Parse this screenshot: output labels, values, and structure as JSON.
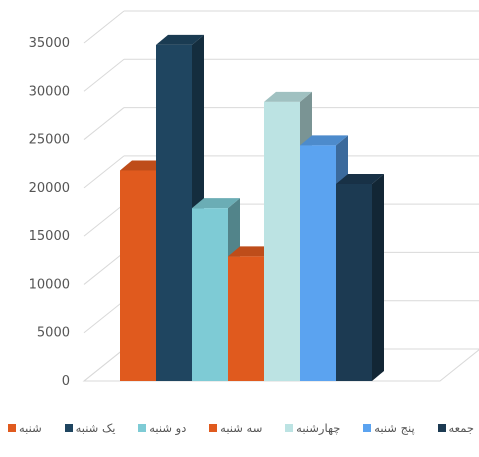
{
  "chart_data": {
    "type": "bar",
    "style": "3d-clustered-column",
    "title": "",
    "xlabel": "",
    "ylabel": "",
    "ylim": [
      0,
      35000
    ],
    "yticks": [
      0,
      5000,
      10000,
      15000,
      20000,
      25000,
      30000,
      35000
    ],
    "grid": true,
    "legend_position": "bottom",
    "categories": [
      ""
    ],
    "series": [
      {
        "name": "شنبه",
        "values": [
          21800
        ],
        "color": "#E05A1E"
      },
      {
        "name": "یک شنبه",
        "values": [
          34800
        ],
        "color": "#1F4560"
      },
      {
        "name": "دو شنبه",
        "values": [
          17900
        ],
        "color": "#7ECBD5"
      },
      {
        "name": "سه شنبه",
        "values": [
          12900
        ],
        "color": "#E05A1E"
      },
      {
        "name": "چهارشنبه",
        "values": [
          28900
        ],
        "color": "#BCE3E3"
      },
      {
        "name": "پنج شنبه",
        "values": [
          24400
        ],
        "color": "#5BA3F0"
      },
      {
        "name": "جمعه",
        "values": [
          20400
        ],
        "color": "#1C3A52"
      }
    ]
  }
}
